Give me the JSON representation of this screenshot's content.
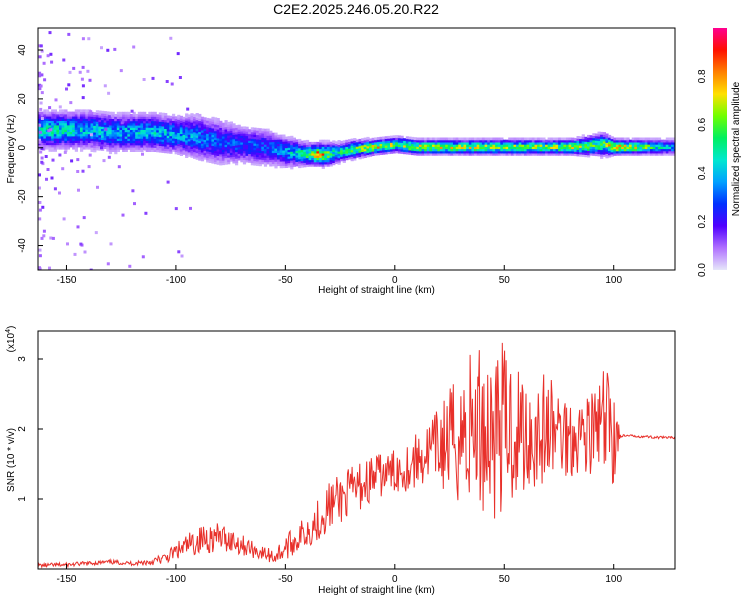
{
  "figure": {
    "title": "C2E2.2025.246.05.20.R22"
  },
  "chart_data": [
    {
      "type": "heatmap",
      "xlabel": "Height of straight line (km)",
      "ylabel": "Frequency (Hz)",
      "xlim": [
        -163,
        128
      ],
      "ylim": [
        -50,
        49
      ],
      "x_ticks": [
        "-150",
        "-100",
        "-50",
        "0",
        "50",
        "100"
      ],
      "x_tick_values": [
        -150,
        -100,
        -50,
        0,
        50,
        100
      ],
      "y_ticks": [
        "-40",
        "-20",
        "0",
        "20",
        "40"
      ],
      "y_tick_values": [
        -40,
        -20,
        0,
        20,
        40
      ],
      "colorbar": {
        "label": "Normalized spectral amplitude",
        "range": [
          0,
          1
        ],
        "ticks": [
          "0.0",
          "0.2",
          "0.4",
          "0.6",
          "0.8"
        ],
        "tick_values": [
          0,
          0.2,
          0.4,
          0.6,
          0.8
        ],
        "colors": [
          "#e6e6fa",
          "#b070ff",
          "#5000ff",
          "#0030ff",
          "#00a0ff",
          "#00e8d0",
          "#00f060",
          "#70ff00",
          "#ffe000",
          "#ff8000",
          "#ff1000",
          "#ff0090"
        ]
      },
      "ridge": {
        "x": [
          -163,
          -150,
          -140,
          -130,
          -120,
          -110,
          -100,
          -90,
          -80,
          -70,
          -60,
          -50,
          -40,
          -35,
          -30,
          -25,
          -20,
          -10,
          0,
          10,
          20,
          40,
          60,
          80,
          95,
          100,
          128
        ],
        "freq": [
          7,
          7,
          7,
          6,
          6,
          6,
          5,
          4,
          2,
          1,
          0,
          -2,
          -3,
          -3,
          -3,
          -2,
          -1,
          0,
          1,
          0,
          0,
          0,
          0,
          0,
          1,
          0,
          0
        ],
        "amplitude": [
          0.5,
          0.5,
          0.45,
          0.45,
          0.45,
          0.45,
          0.42,
          0.38,
          0.33,
          0.32,
          0.32,
          0.42,
          0.6,
          0.9,
          0.6,
          0.55,
          0.62,
          0.78,
          0.72,
          0.75,
          0.72,
          0.73,
          0.7,
          0.7,
          0.65,
          0.85,
          0.4
        ],
        "halfwidth": [
          5,
          5,
          5,
          5,
          5,
          5,
          5,
          6,
          6,
          5,
          5,
          4,
          3,
          3,
          3,
          2.5,
          2.5,
          2,
          2,
          2,
          2,
          2,
          2,
          2,
          3,
          2,
          2
        ]
      },
      "background_low_values": true
    },
    {
      "type": "line",
      "xlabel": "Height of straight line (km)",
      "ylabel": "SNR (10 * v/v)",
      "y_multiplier": "(x10",
      "y_multiplier_exp": "4",
      "y_multiplier_close": ")",
      "xlim": [
        -163,
        128
      ],
      "ylim": [
        0,
        3.4
      ],
      "x_ticks": [
        "-150",
        "-100",
        "-50",
        "0",
        "50",
        "100"
      ],
      "x_tick_values": [
        -150,
        -100,
        -50,
        0,
        50,
        100
      ],
      "y_ticks": [
        "1",
        "2",
        "3"
      ],
      "y_tick_values": [
        1,
        2,
        3
      ],
      "series": [
        {
          "color": "#e8302a",
          "x": [
            -163,
            -150,
            -140,
            -130,
            -120,
            -112,
            -105,
            -100,
            -95,
            -90,
            -85,
            -80,
            -75,
            -70,
            -65,
            -60,
            -55,
            -50,
            -45,
            -40,
            -35,
            -30,
            -25,
            -20,
            -15,
            -10,
            -5,
            0,
            5,
            10,
            15,
            20,
            25,
            30,
            35,
            40,
            45,
            50,
            55,
            60,
            65,
            70,
            75,
            80,
            85,
            90,
            95,
            100,
            103,
            110,
            120,
            128
          ],
          "values": [
            0.05,
            0.06,
            0.08,
            0.1,
            0.08,
            0.1,
            0.15,
            0.25,
            0.32,
            0.4,
            0.45,
            0.45,
            0.42,
            0.35,
            0.28,
            0.22,
            0.18,
            0.3,
            0.42,
            0.55,
            0.7,
            0.9,
            1.0,
            1.1,
            1.2,
            1.3,
            1.35,
            1.4,
            1.45,
            1.55,
            1.65,
            1.75,
            1.8,
            1.9,
            2.0,
            2.05,
            2.0,
            2.05,
            2.0,
            1.95,
            1.95,
            2.0,
            1.95,
            1.9,
            1.95,
            1.95,
            2.0,
            2.0,
            1.9,
            1.9,
            1.88,
            1.87
          ],
          "spread": [
            0.03,
            0.03,
            0.03,
            0.03,
            0.03,
            0.05,
            0.08,
            0.12,
            0.18,
            0.2,
            0.22,
            0.2,
            0.18,
            0.15,
            0.12,
            0.1,
            0.12,
            0.18,
            0.2,
            0.25,
            0.3,
            0.35,
            0.35,
            0.35,
            0.35,
            0.35,
            0.3,
            0.3,
            0.35,
            0.4,
            0.45,
            0.55,
            0.8,
            1.0,
            1.2,
            1.3,
            1.3,
            1.2,
            1.1,
            1.0,
            0.9,
            0.8,
            0.7,
            0.6,
            0.55,
            0.6,
            0.9,
            1.0,
            0.02,
            0.02,
            0.02,
            0.02
          ]
        }
      ]
    }
  ]
}
